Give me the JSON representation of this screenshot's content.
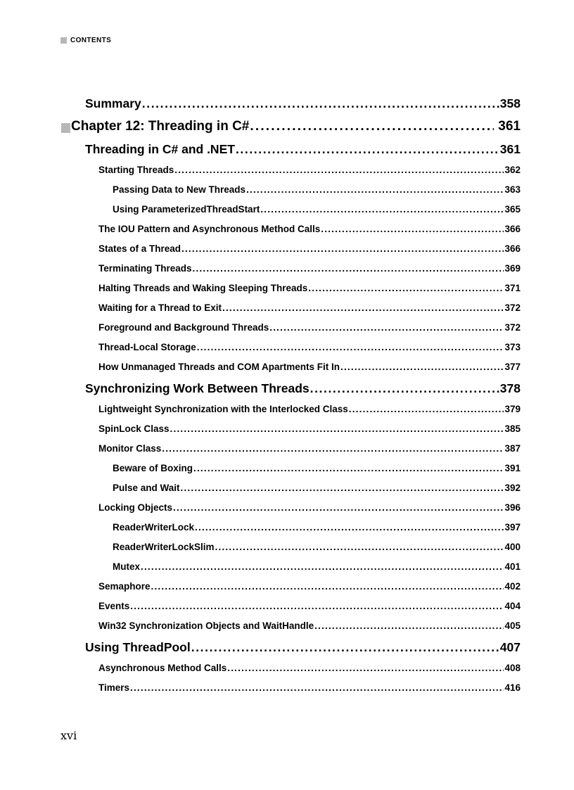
{
  "page": {
    "header": {
      "label": "CONTENTS"
    },
    "footer": {
      "page_number": "xvi"
    }
  },
  "colors": {
    "background": "#ffffff",
    "text": "#000000",
    "icon_gray": "#bdbdbd"
  },
  "toc": {
    "entries": [
      {
        "level": "h1",
        "label": "Summary",
        "page": "358"
      },
      {
        "level": "chapter",
        "label": "Chapter 12: Threading in C#",
        "page": "361",
        "icon": "chapter-square-icon"
      },
      {
        "level": "h1",
        "label": "Threading in C# and .NET",
        "page": "361"
      },
      {
        "level": "h2",
        "label": "Starting Threads",
        "page": "362"
      },
      {
        "level": "h3",
        "label": "Passing Data to New Threads",
        "page": "363"
      },
      {
        "level": "h3",
        "label": "Using ParameterizedThreadStart",
        "page": "365"
      },
      {
        "level": "h2",
        "label": "The IOU Pattern and Asynchronous Method Calls",
        "page": "366"
      },
      {
        "level": "h2",
        "label": "States of a Thread",
        "page": "366"
      },
      {
        "level": "h2",
        "label": "Terminating Threads",
        "page": "369"
      },
      {
        "level": "h2",
        "label": "Halting Threads and Waking Sleeping Threads",
        "page": "371"
      },
      {
        "level": "h2",
        "label": "Waiting for a Thread to Exit",
        "page": "372"
      },
      {
        "level": "h2",
        "label": "Foreground and Background Threads",
        "page": "372"
      },
      {
        "level": "h2",
        "label": "Thread-Local Storage",
        "page": "373"
      },
      {
        "level": "h2",
        "label": "How Unmanaged Threads and COM Apartments Fit In",
        "page": "377"
      },
      {
        "level": "h1",
        "label": "Synchronizing Work Between Threads",
        "page": "378"
      },
      {
        "level": "h2",
        "label": "Lightweight Synchronization with the Interlocked Class",
        "page": "379"
      },
      {
        "level": "h2",
        "label": "SpinLock Class",
        "page": "385"
      },
      {
        "level": "h2",
        "label": "Monitor Class",
        "page": "387"
      },
      {
        "level": "h3",
        "label": "Beware of Boxing",
        "page": "391"
      },
      {
        "level": "h3",
        "label": "Pulse and Wait",
        "page": "392"
      },
      {
        "level": "h2",
        "label": "Locking Objects",
        "page": "396"
      },
      {
        "level": "h3",
        "label": "ReaderWriterLock",
        "page": "397"
      },
      {
        "level": "h3",
        "label": "ReaderWriterLockSlim",
        "page": "400"
      },
      {
        "level": "h3",
        "label": "Mutex",
        "page": "401"
      },
      {
        "level": "h2",
        "label": "Semaphore",
        "page": "402"
      },
      {
        "level": "h2",
        "label": "Events",
        "page": "404"
      },
      {
        "level": "h2",
        "label": "Win32 Synchronization Objects and WaitHandle",
        "page": "405"
      },
      {
        "level": "h1",
        "label": "Using ThreadPool",
        "page": "407"
      },
      {
        "level": "h2",
        "label": "Asynchronous Method Calls",
        "page": "408"
      },
      {
        "level": "h2",
        "label": "Timers",
        "page": "416"
      }
    ]
  }
}
